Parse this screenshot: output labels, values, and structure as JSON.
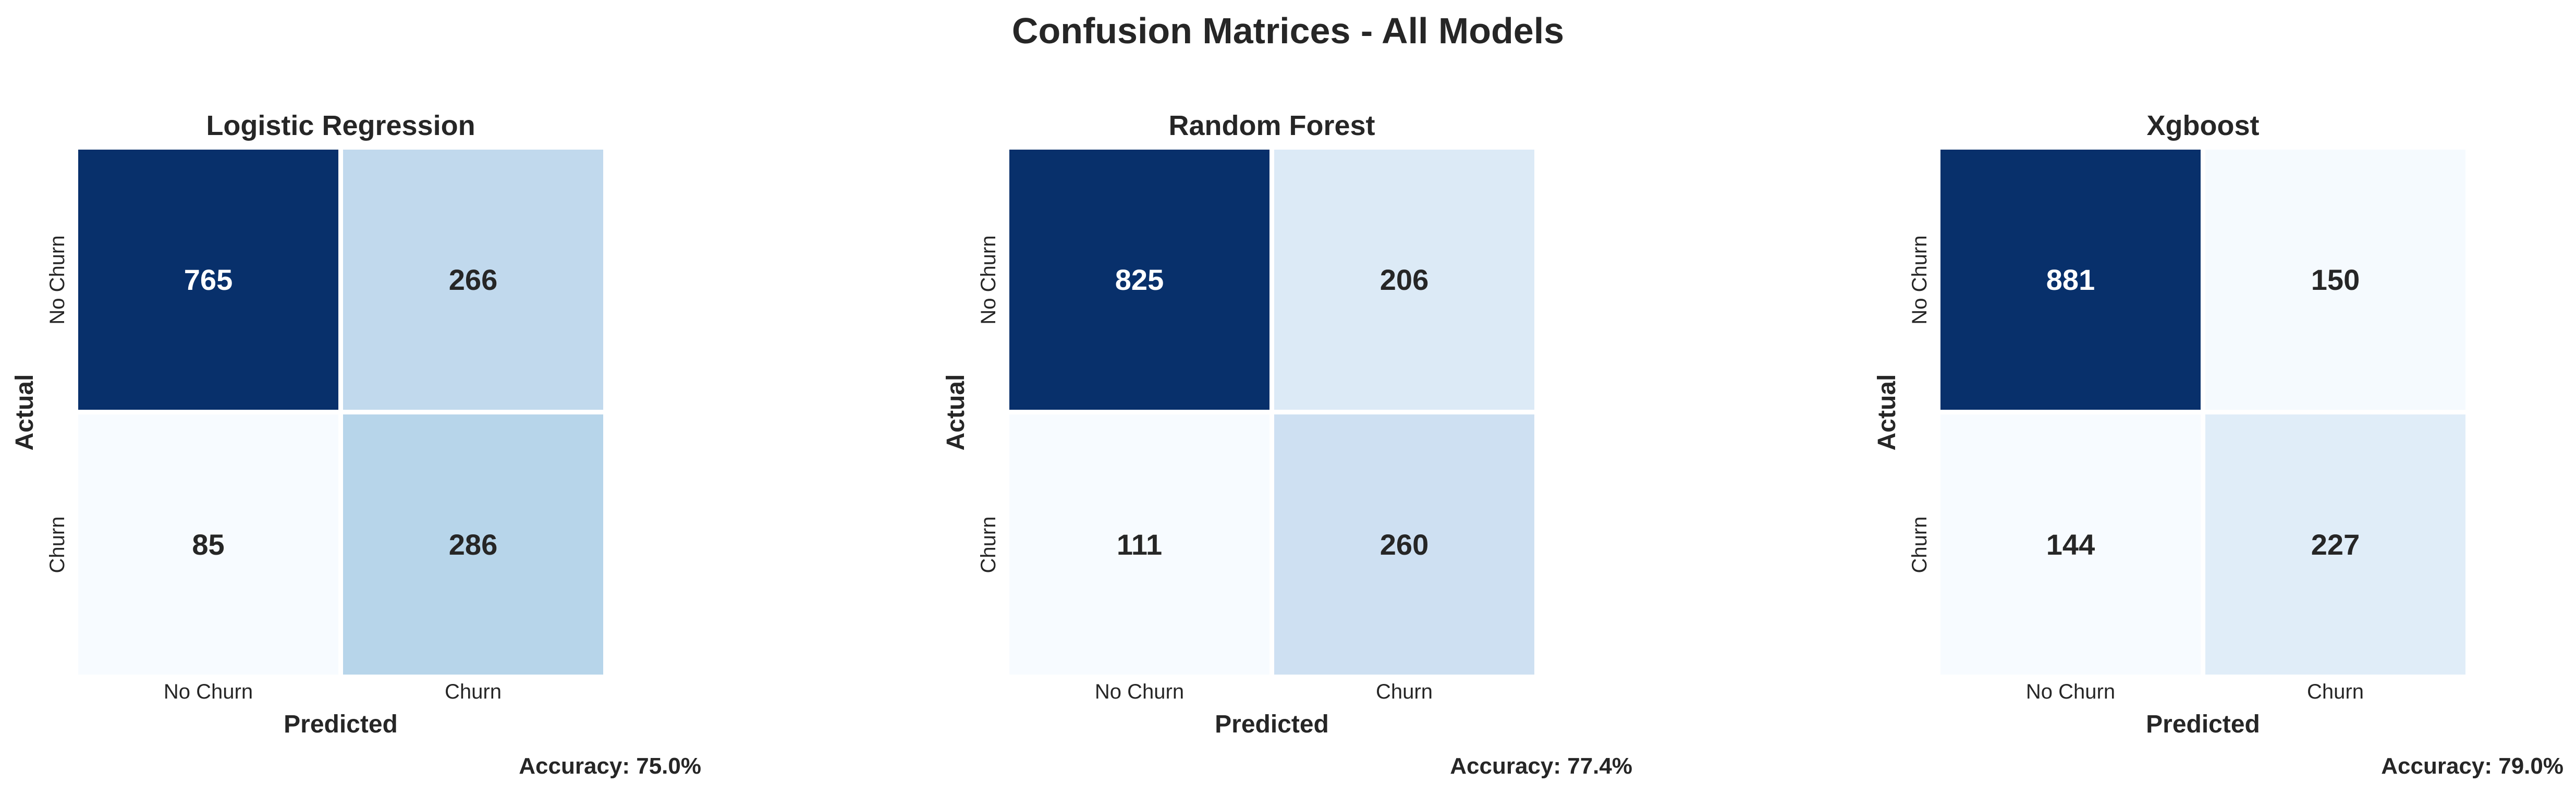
{
  "figure": {
    "title": "Confusion Matrices - All Models"
  },
  "chart_data": [
    {
      "type": "heatmap",
      "title": "Logistic Regression",
      "xlabel": "Predicted",
      "ylabel": "Actual",
      "x_ticks": [
        "No Churn",
        "Churn"
      ],
      "y_ticks": [
        "No Churn",
        "Churn"
      ],
      "values": [
        [
          765,
          266
        ],
        [
          85,
          286
        ]
      ],
      "colormap": "Blues",
      "colorbar": false,
      "accuracy_label": "Accuracy: 75.0%"
    },
    {
      "type": "heatmap",
      "title": "Random Forest",
      "xlabel": "Predicted",
      "ylabel": "Actual",
      "x_ticks": [
        "No Churn",
        "Churn"
      ],
      "y_ticks": [
        "No Churn",
        "Churn"
      ],
      "values": [
        [
          825,
          206
        ],
        [
          111,
          260
        ]
      ],
      "colormap": "Blues",
      "colorbar": false,
      "accuracy_label": "Accuracy: 77.4%"
    },
    {
      "type": "heatmap",
      "title": "Xgboost",
      "xlabel": "Predicted",
      "ylabel": "Actual",
      "x_ticks": [
        "No Churn",
        "Churn"
      ],
      "y_ticks": [
        "No Churn",
        "Churn"
      ],
      "values": [
        [
          881,
          150
        ],
        [
          144,
          227
        ]
      ],
      "colormap": "Blues",
      "colorbar": false,
      "accuracy_label": "Accuracy: 79.0%"
    }
  ],
  "colors": {
    "text": "#262626",
    "background": "#ffffff",
    "cell_border": "#ffffff",
    "value_text_on_dark": "#ffffff",
    "value_text_on_light": "#262626"
  }
}
